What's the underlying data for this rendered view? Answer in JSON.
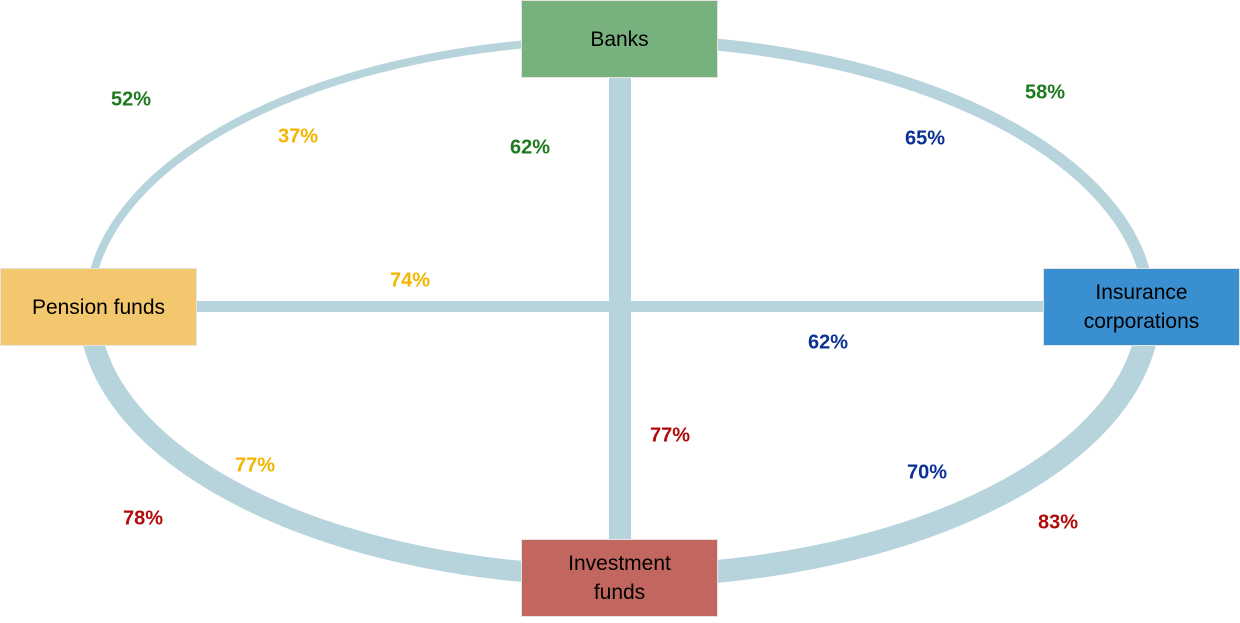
{
  "colors": {
    "link": "#b7d4dd",
    "banks": "#77b27e",
    "pension": "#f3c76d",
    "insurance": "#3a8fd0",
    "investment": "#c1675f",
    "green": "#1e7a1e",
    "orange": "#f5b400",
    "blue": "#0a3296",
    "red": "#b00a0a"
  },
  "nodes": {
    "banks": "Banks",
    "pension": "Pension funds",
    "insurance_1": "Insurance",
    "insurance_2": "corporations",
    "investment_1": "Investment",
    "investment_2": "funds"
  },
  "labels": [
    {
      "text": "52%",
      "color": "green"
    },
    {
      "text": "37%",
      "color": "orange"
    },
    {
      "text": "62%",
      "color": "green"
    },
    {
      "text": "65%",
      "color": "blue"
    },
    {
      "text": "58%",
      "color": "green"
    },
    {
      "text": "74%",
      "color": "orange"
    },
    {
      "text": "62%",
      "color": "blue"
    },
    {
      "text": "77%",
      "color": "red"
    },
    {
      "text": "77%",
      "color": "orange"
    },
    {
      "text": "78%",
      "color": "red"
    },
    {
      "text": "70%",
      "color": "blue"
    },
    {
      "text": "83%",
      "color": "red"
    }
  ]
}
